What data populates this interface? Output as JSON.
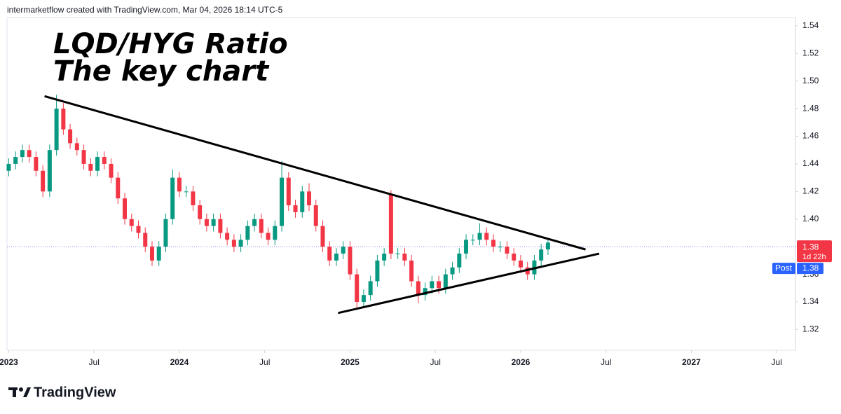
{
  "chart_data": {
    "type": "candlestick",
    "header": "intermarketflow created with TradingView.com, Mar 04, 2026 18:14 UTC-5",
    "title": "LQD/HYG Ratio",
    "subtitle": "The key chart",
    "brand": "TradingView",
    "up_color": "#089981",
    "down_color": "#f23645",
    "x": [
      2023,
      2023.04,
      2023.08,
      2023.12,
      2023.16,
      2023.2,
      2023.24,
      2023.28,
      2023.32,
      2023.36,
      2023.4,
      2023.44,
      2023.48,
      2023.52,
      2023.56,
      2023.6,
      2023.64,
      2023.68,
      2023.72,
      2023.76,
      2023.8,
      2023.84,
      2023.88,
      2023.92,
      2023.96,
      2024,
      2024.04,
      2024.08,
      2024.12,
      2024.16,
      2024.2,
      2024.24,
      2024.28,
      2024.32,
      2024.36,
      2024.4,
      2024.44,
      2024.48,
      2024.52,
      2024.56,
      2024.6,
      2024.64,
      2024.68,
      2024.72,
      2024.76,
      2024.8,
      2024.84,
      2024.88,
      2024.92,
      2024.96,
      2025,
      2025.04,
      2025.08,
      2025.12,
      2025.16,
      2025.2,
      2025.24,
      2025.28,
      2025.32,
      2025.36,
      2025.4,
      2025.44,
      2025.48,
      2025.52,
      2025.56,
      2025.6,
      2025.64,
      2025.68,
      2025.72,
      2025.76,
      2025.8,
      2025.84,
      2025.88,
      2025.92,
      2025.96,
      2026,
      2026.04,
      2026.08,
      2026.12,
      2026.16
    ],
    "open": [
      1.435,
      1.44,
      1.445,
      1.45,
      1.445,
      1.435,
      1.42,
      1.45,
      1.48,
      1.465,
      1.455,
      1.45,
      1.44,
      1.435,
      1.445,
      1.44,
      1.43,
      1.415,
      1.4,
      1.395,
      1.39,
      1.38,
      1.37,
      1.38,
      1.4,
      1.43,
      1.42,
      1.42,
      1.41,
      1.4,
      1.395,
      1.4,
      1.39,
      1.385,
      1.38,
      1.385,
      1.395,
      1.4,
      1.39,
      1.385,
      1.395,
      1.43,
      1.41,
      1.405,
      1.42,
      1.41,
      1.395,
      1.38,
      1.37,
      1.375,
      1.38,
      1.36,
      1.34,
      1.345,
      1.355,
      1.37,
      1.418,
      1.375,
      1.375,
      1.37,
      1.355,
      1.345,
      1.35,
      1.355,
      1.35,
      1.36,
      1.365,
      1.375,
      1.385,
      1.385,
      1.39,
      1.385,
      1.38,
      1.38,
      1.375,
      1.37,
      1.365,
      1.36,
      1.37,
      1.378
    ],
    "high": [
      1.444,
      1.449,
      1.454,
      1.454,
      1.449,
      1.439,
      1.454,
      1.49,
      1.484,
      1.469,
      1.459,
      1.454,
      1.444,
      1.449,
      1.449,
      1.444,
      1.434,
      1.419,
      1.404,
      1.399,
      1.394,
      1.384,
      1.384,
      1.404,
      1.436,
      1.434,
      1.424,
      1.424,
      1.414,
      1.404,
      1.404,
      1.404,
      1.394,
      1.389,
      1.389,
      1.399,
      1.404,
      1.404,
      1.394,
      1.399,
      1.442,
      1.434,
      1.414,
      1.424,
      1.426,
      1.414,
      1.399,
      1.384,
      1.379,
      1.384,
      1.384,
      1.364,
      1.349,
      1.359,
      1.374,
      1.379,
      1.421,
      1.379,
      1.379,
      1.374,
      1.359,
      1.354,
      1.359,
      1.359,
      1.364,
      1.369,
      1.379,
      1.389,
      1.389,
      1.397,
      1.394,
      1.389,
      1.384,
      1.384,
      1.379,
      1.374,
      1.369,
      1.374,
      1.382,
      1.386
    ],
    "low": [
      1.431,
      1.436,
      1.441,
      1.441,
      1.431,
      1.416,
      1.416,
      1.446,
      1.461,
      1.451,
      1.446,
      1.436,
      1.431,
      1.431,
      1.436,
      1.426,
      1.411,
      1.396,
      1.391,
      1.386,
      1.376,
      1.366,
      1.366,
      1.376,
      1.396,
      1.416,
      1.416,
      1.406,
      1.396,
      1.391,
      1.391,
      1.386,
      1.381,
      1.376,
      1.376,
      1.381,
      1.391,
      1.386,
      1.381,
      1.381,
      1.391,
      1.406,
      1.401,
      1.401,
      1.406,
      1.391,
      1.376,
      1.366,
      1.366,
      1.371,
      1.356,
      1.336,
      1.336,
      1.341,
      1.351,
      1.366,
      1.371,
      1.371,
      1.366,
      1.351,
      1.339,
      1.341,
      1.346,
      1.346,
      1.346,
      1.356,
      1.361,
      1.371,
      1.381,
      1.381,
      1.381,
      1.376,
      1.376,
      1.371,
      1.366,
      1.361,
      1.356,
      1.356,
      1.366,
      1.374
    ],
    "close": [
      1.44,
      1.445,
      1.45,
      1.445,
      1.435,
      1.42,
      1.45,
      1.48,
      1.465,
      1.455,
      1.45,
      1.44,
      1.435,
      1.445,
      1.44,
      1.43,
      1.415,
      1.4,
      1.395,
      1.39,
      1.38,
      1.37,
      1.38,
      1.4,
      1.43,
      1.42,
      1.42,
      1.41,
      1.4,
      1.395,
      1.4,
      1.39,
      1.385,
      1.38,
      1.385,
      1.395,
      1.4,
      1.39,
      1.385,
      1.395,
      1.43,
      1.41,
      1.405,
      1.42,
      1.41,
      1.395,
      1.38,
      1.37,
      1.375,
      1.38,
      1.36,
      1.34,
      1.345,
      1.355,
      1.37,
      1.375,
      1.375,
      1.375,
      1.37,
      1.355,
      1.345,
      1.35,
      1.355,
      1.35,
      1.36,
      1.365,
      1.375,
      1.385,
      1.385,
      1.39,
      1.385,
      1.38,
      1.38,
      1.375,
      1.37,
      1.365,
      1.36,
      1.37,
      1.378,
      1.383
    ],
    "trendlines": [
      {
        "x": [
          2023.21,
          2026.38
        ],
        "y": [
          1.489,
          1.378
        ]
      },
      {
        "x": [
          2024.93,
          2026.46
        ],
        "y": [
          1.332,
          1.375
        ]
      }
    ],
    "last_price": 1.38,
    "last_price_color": "#f23645",
    "countdown": "1d 22h",
    "post_label": "Post",
    "post_price": 1.38,
    "post_color": "#2962ff",
    "xlim": [
      2022.99,
      2027.61
    ],
    "ylim": [
      1.305,
      1.546
    ],
    "xticks": [
      2023,
      {
        "value": 2023.5,
        "label": "Jul"
      },
      2024,
      {
        "value": 2024.5,
        "label": "Jul"
      },
      2025,
      {
        "value": 2025.5,
        "label": "Jul"
      },
      2026,
      {
        "value": 2026.5,
        "label": "Jul"
      },
      2027,
      {
        "value": 2027.5,
        "label": "Jul"
      }
    ],
    "yticks": [
      1.32,
      1.34,
      1.36,
      1.38,
      {
        "value": 1.4,
        "label": "1.40"
      },
      1.42,
      1.44,
      1.46,
      1.48,
      {
        "value": 1.5,
        "label": "1.50"
      },
      1.52,
      1.54
    ]
  }
}
